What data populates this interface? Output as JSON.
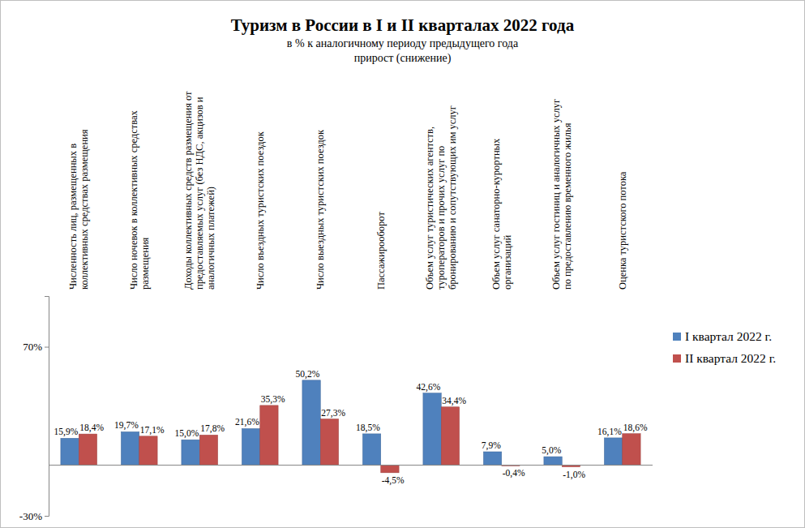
{
  "chart_data": {
    "type": "bar",
    "title": "Туризм в России в I и II кварталах 2022 года",
    "subtitle": [
      "в % к аналогичному периоду предыдущего года",
      "прирост (снижение)"
    ],
    "categories": [
      "Численность лиц, размещенных в коллективных средствах размещения",
      "Число ночевок в коллективных средствах размещения",
      "Доходы коллективных средств размещения от предоставляемых услуг (без НДС, акцизов и аналогичных платежей)",
      "Число въездных туристских поездок",
      "Число выездных туристских поездок",
      "Пассажирооборот",
      "Объем услуг туристических агентств, туроператоров и прочих услуг по бронированию и сопутствующих им услуг",
      "Объем услуг санаторно-курортных организаций",
      "Объем услуг гостиниц и аналогичных услуг по предоставлению временного жилья",
      "Оценка туристского потока"
    ],
    "series": [
      {
        "name": "I квартал 2022 г.",
        "color": "#4f81bd",
        "values": [
          15.9,
          19.7,
          15.0,
          21.6,
          50.2,
          18.5,
          42.6,
          7.9,
          5.0,
          16.1
        ],
        "value_labels": [
          "15,9%",
          "19,7%",
          "15,0%",
          "21,6%",
          "50,2%",
          "18,5%",
          "42,6%",
          "7,9%",
          "5,0%",
          "16,1%"
        ]
      },
      {
        "name": "II квартал 2022 г.",
        "color": "#c0504d",
        "values": [
          18.4,
          17.1,
          17.8,
          35.3,
          27.3,
          -4.5,
          34.4,
          -0.4,
          -1.0,
          18.6
        ],
        "value_labels": [
          "18,4%",
          "17,1%",
          "17,8%",
          "35,3%",
          "27,3%",
          "-4,5%",
          "34,4%",
          "-0,4%",
          "-1,0%",
          "18,6%"
        ]
      }
    ],
    "ylim": [
      -30,
      100
    ],
    "yticks": [
      {
        "value": -30,
        "label": "-30%"
      },
      {
        "value": 70,
        "label": "70%"
      }
    ],
    "grid": false,
    "legend": "right",
    "data_labels": true
  }
}
